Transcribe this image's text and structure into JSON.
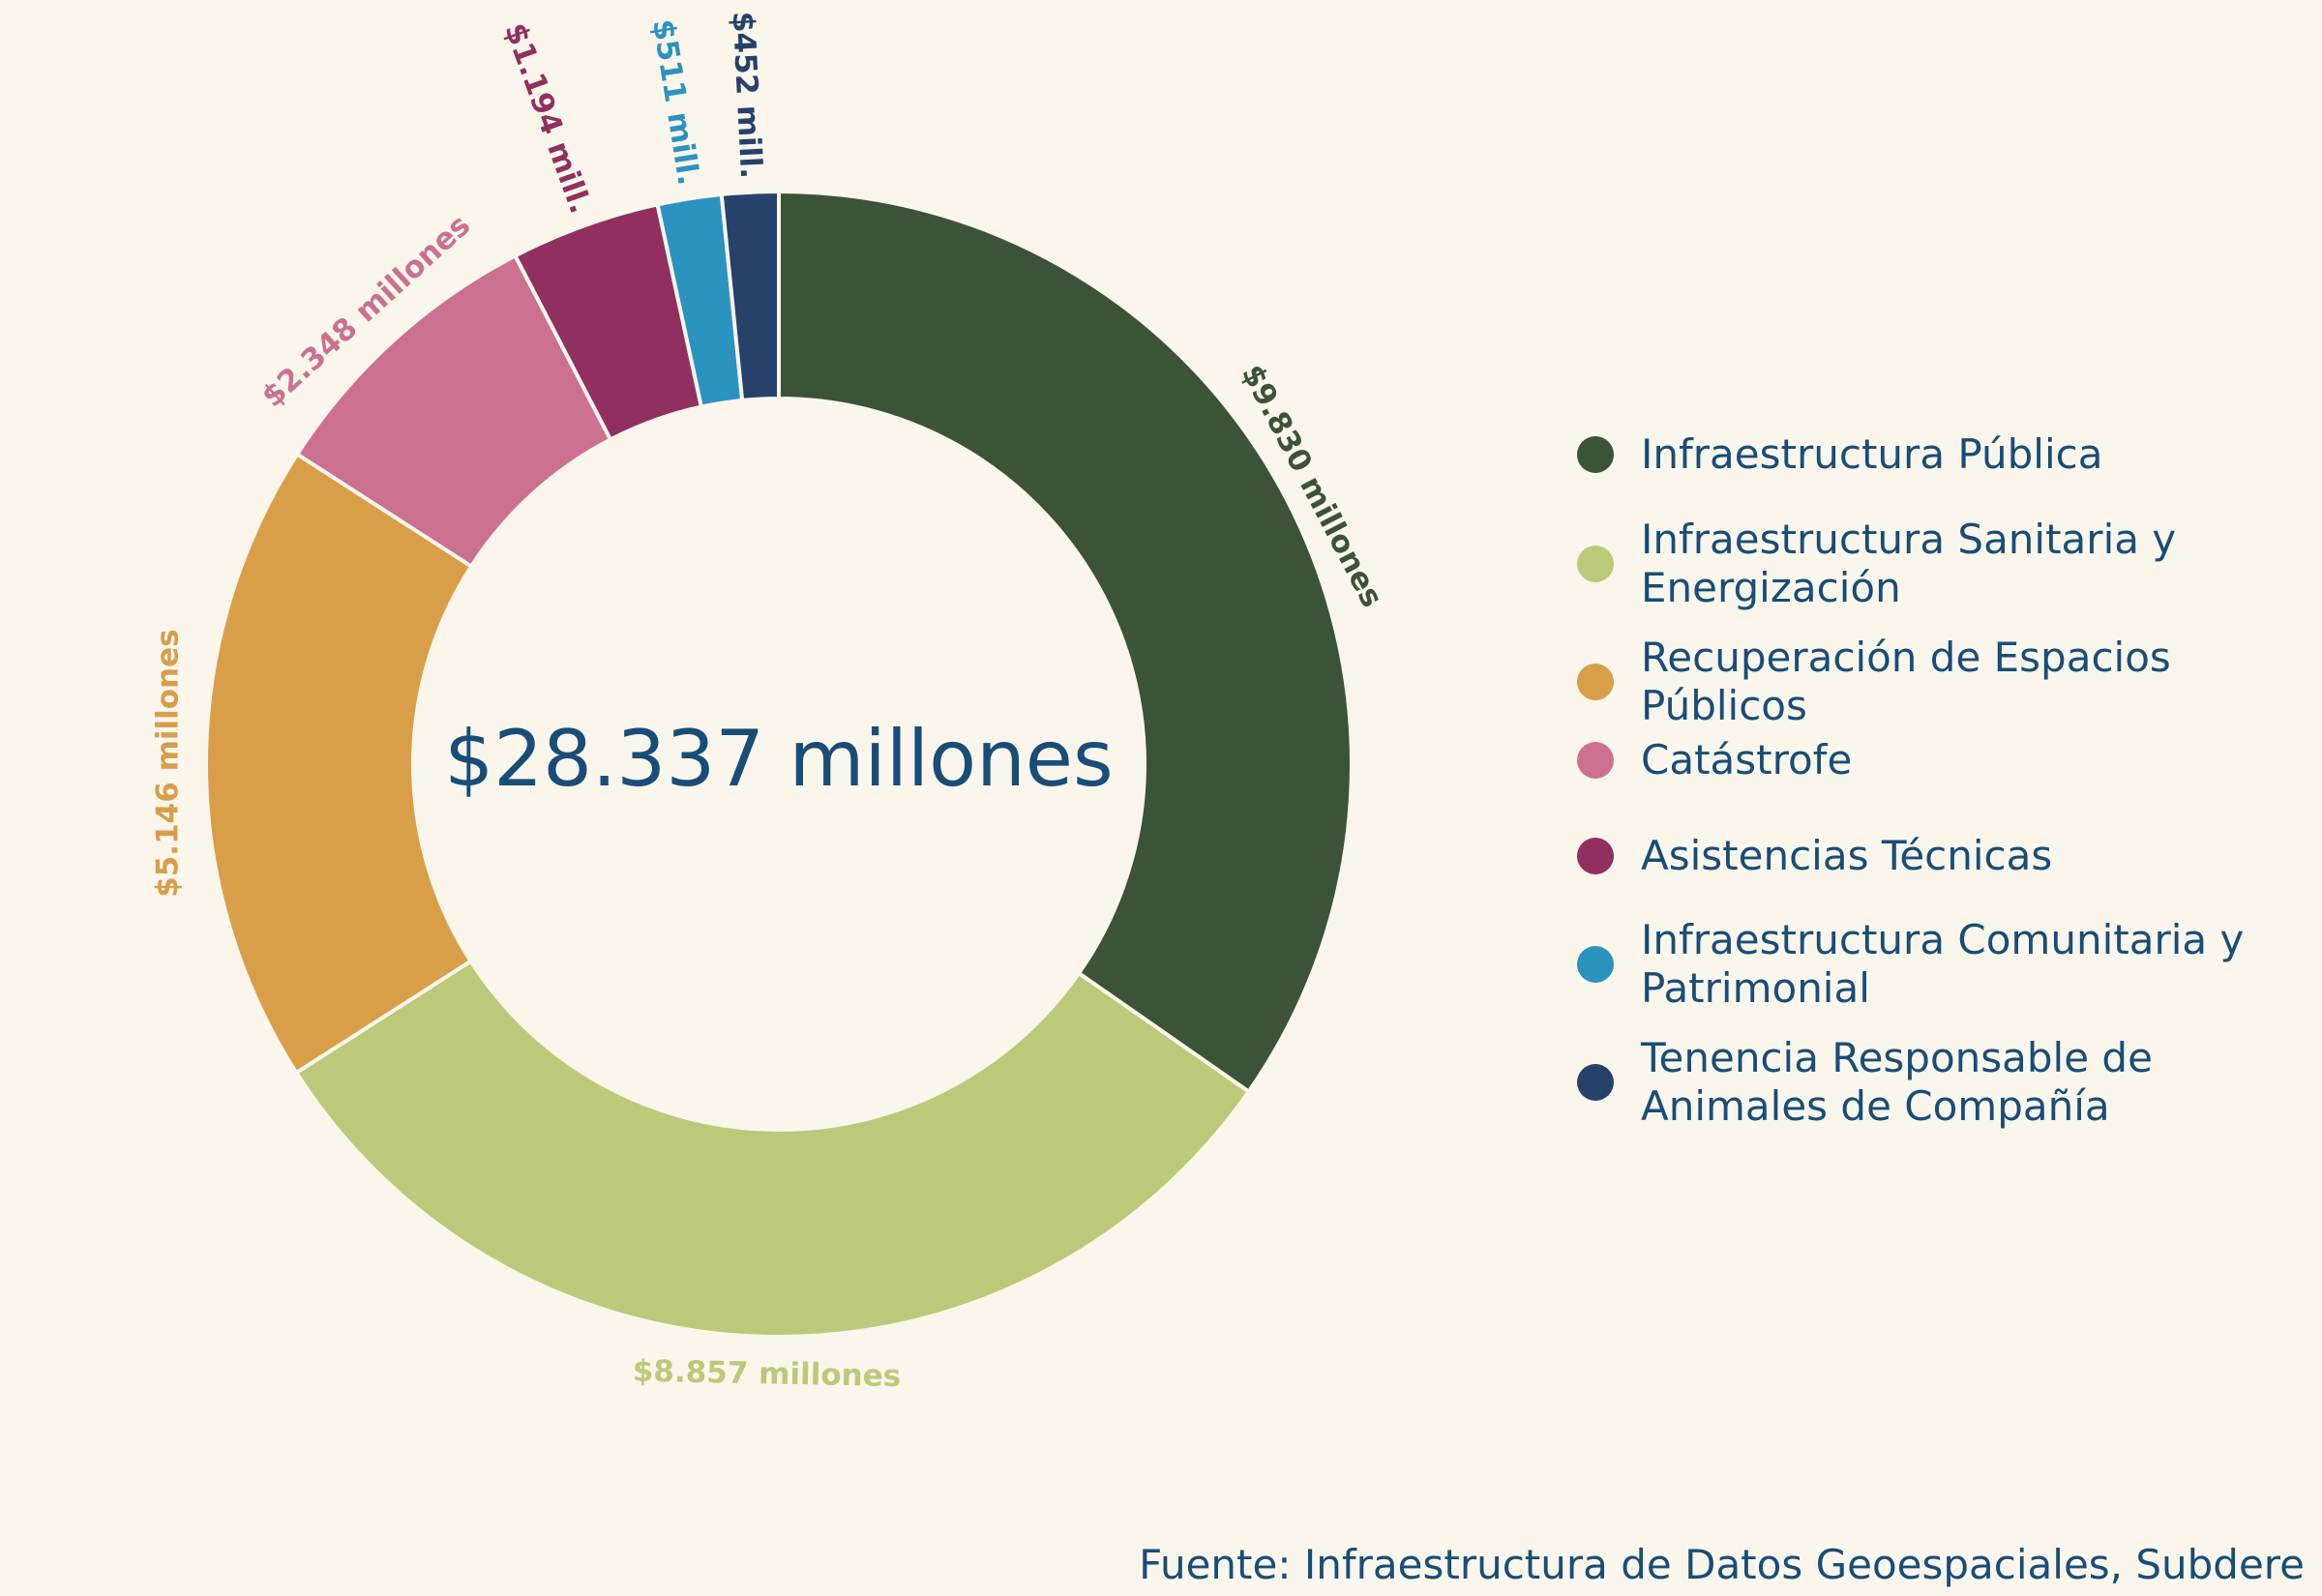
{
  "chart_data": {
    "type": "pie",
    "subtype": "donut",
    "center_label": "$28.337 millones",
    "categories": [
      "Infraestructura Pública",
      "Infraestructura Sanitaria y Energización",
      "Recuperación de Espacios Públicos",
      "Catástrofe",
      "Asistencias Técnicas",
      "Infraestructura Comunitaria y Patrimonial",
      "Tenencia Responsable de Animales de Compañía"
    ],
    "values": [
      9830,
      8857,
      5146,
      2348,
      1194,
      511,
      452
    ],
    "value_labels": [
      "$9.830 millones",
      "$8.857 millones",
      "$5.146 millones",
      "$2.348 millones",
      "$1.194 mill.",
      "$511 mill.",
      "$452 mill."
    ],
    "colors": [
      "#3b5336",
      "#bcc978",
      "#d89e48",
      "#cc7090",
      "#912f60",
      "#2b93c0",
      "#26416a"
    ],
    "legend_position": "right"
  },
  "legend": {
    "items": [
      {
        "label": "Infraestructura Pública",
        "color": "#3b5336"
      },
      {
        "label": "Infraestructura Sanitaria y Energización",
        "color": "#bcc978"
      },
      {
        "label": "Recuperación de Espacios Públicos",
        "color": "#d89e48"
      },
      {
        "label": "Catástrofe",
        "color": "#cc7090"
      },
      {
        "label": "Asistencias Técnicas",
        "color": "#912f60"
      },
      {
        "label": "Infraestructura Comunitaria y Patrimonial",
        "color": "#2b93c0"
      },
      {
        "label": "Tenencia Responsable de Animales de Compañía",
        "color": "#26416a"
      }
    ]
  },
  "source": "Fuente: Infraestructura de Datos Geoespaciales, Subdere"
}
